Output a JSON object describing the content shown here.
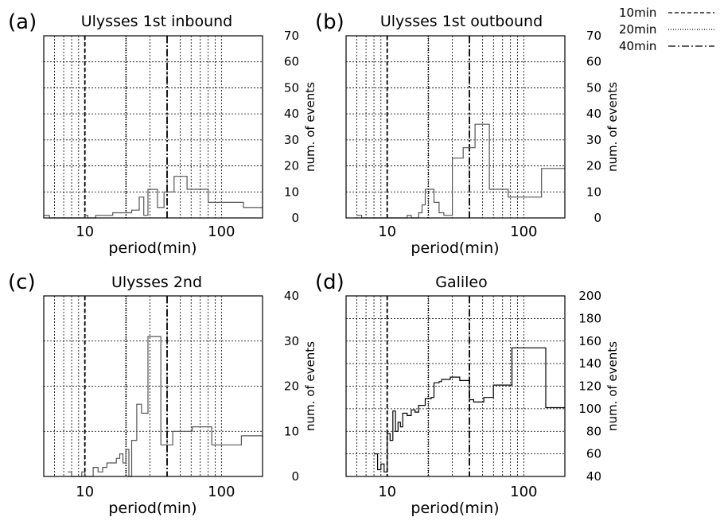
{
  "legend": [
    {
      "label": "10min",
      "style": "dashed"
    },
    {
      "label": "20min",
      "style": "dotted"
    },
    {
      "label": "40min",
      "style": "dashdot"
    }
  ],
  "chart_data": [
    {
      "panel": "(a)",
      "title": "Ulysses 1st inbound",
      "type": "histogram-step",
      "xlabel": "period(min)",
      "ylabel": "num. of events",
      "xscale": "log",
      "xlim": [
        5,
        200
      ],
      "ylim": [
        0,
        70
      ],
      "yticks": [
        0,
        10,
        20,
        30,
        40,
        50,
        60,
        70
      ],
      "xtick_labels": [
        "10",
        "100"
      ],
      "markers_min": [
        10,
        20,
        40
      ],
      "grid": true,
      "steps": [
        [
          5,
          1
        ],
        [
          5.5,
          0
        ],
        [
          10,
          1
        ],
        [
          10.5,
          0
        ],
        [
          12,
          1
        ],
        [
          15,
          1
        ],
        [
          16,
          2
        ],
        [
          20,
          2
        ],
        [
          22,
          3
        ],
        [
          25,
          8
        ],
        [
          27,
          1
        ],
        [
          29,
          11
        ],
        [
          33,
          11
        ],
        [
          34,
          4
        ],
        [
          38,
          10
        ],
        [
          43,
          10
        ],
        [
          45,
          16
        ],
        [
          55,
          16
        ],
        [
          56,
          11
        ],
        [
          73,
          11
        ],
        [
          80,
          6
        ],
        [
          130,
          6
        ],
        [
          145,
          4
        ],
        [
          200,
          4
        ]
      ]
    },
    {
      "panel": "(b)",
      "title": "Ulysses 1st outbound",
      "type": "histogram-step",
      "xlabel": "period(min)",
      "ylabel": "num. of events",
      "xscale": "log",
      "xlim": [
        5,
        200
      ],
      "ylim": [
        0,
        70
      ],
      "yticks": [
        0,
        10,
        20,
        30,
        40,
        50,
        60,
        70
      ],
      "xtick_labels": [
        "10",
        "100"
      ],
      "markers_min": [
        10,
        20,
        40
      ],
      "grid": true,
      "steps": [
        [
          6,
          1
        ],
        [
          6.5,
          0
        ],
        [
          14,
          1
        ],
        [
          15,
          0
        ],
        [
          17,
          2
        ],
        [
          18,
          5
        ],
        [
          19,
          11
        ],
        [
          21,
          11
        ],
        [
          22,
          6
        ],
        [
          24,
          2
        ],
        [
          26,
          1
        ],
        [
          28,
          1
        ],
        [
          30,
          23
        ],
        [
          35,
          23
        ],
        [
          36,
          27
        ],
        [
          42,
          27
        ],
        [
          44,
          36
        ],
        [
          55,
          36
        ],
        [
          56,
          11
        ],
        [
          70,
          11
        ],
        [
          77,
          8
        ],
        [
          120,
          8
        ],
        [
          135,
          19
        ],
        [
          200,
          19
        ]
      ]
    },
    {
      "panel": "(c)",
      "title": "Ulysses 2nd",
      "type": "histogram-step",
      "xlabel": "period(min)",
      "ylabel": "num. of events",
      "xscale": "log",
      "xlim": [
        5,
        200
      ],
      "ylim": [
        0,
        40
      ],
      "yticks": [
        0,
        10,
        20,
        30,
        40
      ],
      "xtick_labels": [
        "10",
        "100"
      ],
      "markers_min": [
        10,
        20,
        40
      ],
      "grid": true,
      "steps": [
        [
          7.5,
          1
        ],
        [
          8,
          0
        ],
        [
          9.5,
          1
        ],
        [
          10,
          0
        ],
        [
          11.5,
          2
        ],
        [
          12.5,
          1
        ],
        [
          13.5,
          2
        ],
        [
          14.5,
          3
        ],
        [
          16,
          3
        ],
        [
          17,
          4
        ],
        [
          18,
          5
        ],
        [
          19,
          3
        ],
        [
          20,
          6
        ],
        [
          21,
          0
        ],
        [
          22,
          8
        ],
        [
          24,
          16
        ],
        [
          26,
          14
        ],
        [
          29,
          31
        ],
        [
          33,
          31
        ],
        [
          36,
          7
        ],
        [
          41,
          7
        ],
        [
          44,
          10
        ],
        [
          60,
          10
        ],
        [
          61,
          11
        ],
        [
          80,
          11
        ],
        [
          85,
          7
        ],
        [
          130,
          7
        ],
        [
          140,
          9
        ],
        [
          200,
          9
        ]
      ]
    },
    {
      "panel": "(d)",
      "title": "Galileo",
      "type": "histogram-step",
      "xlabel": "period(min)",
      "ylabel": "num. of events",
      "xscale": "log",
      "xlim": [
        5,
        200
      ],
      "ylim": [
        40,
        200
      ],
      "yticks": [
        40,
        60,
        80,
        100,
        120,
        140,
        160,
        180,
        200
      ],
      "xtick_labels": [
        "10",
        "100"
      ],
      "markers_min": [
        10,
        20,
        40
      ],
      "grid": true,
      "steps": [
        [
          8,
          60
        ],
        [
          8.5,
          46
        ],
        [
          9,
          51
        ],
        [
          9.5,
          44
        ],
        [
          10,
          78
        ],
        [
          10.5,
          72
        ],
        [
          11,
          98
        ],
        [
          11.5,
          80
        ],
        [
          12,
          88
        ],
        [
          12.5,
          84
        ],
        [
          13,
          96
        ],
        [
          14,
          94
        ],
        [
          15,
          99
        ],
        [
          16,
          97
        ],
        [
          17,
          103
        ],
        [
          18.5,
          103
        ],
        [
          19,
          109
        ],
        [
          21,
          110
        ],
        [
          22,
          123
        ],
        [
          24,
          124
        ],
        [
          25,
          126
        ],
        [
          28,
          126
        ],
        [
          29,
          128
        ],
        [
          33,
          128
        ],
        [
          34,
          125
        ],
        [
          38,
          125
        ],
        [
          40,
          108
        ],
        [
          43,
          106
        ],
        [
          50,
          106
        ],
        [
          51,
          110
        ],
        [
          58,
          110
        ],
        [
          60,
          121
        ],
        [
          80,
          121
        ],
        [
          82,
          154
        ],
        [
          140,
          154
        ],
        [
          145,
          101
        ],
        [
          200,
          101
        ]
      ]
    }
  ]
}
